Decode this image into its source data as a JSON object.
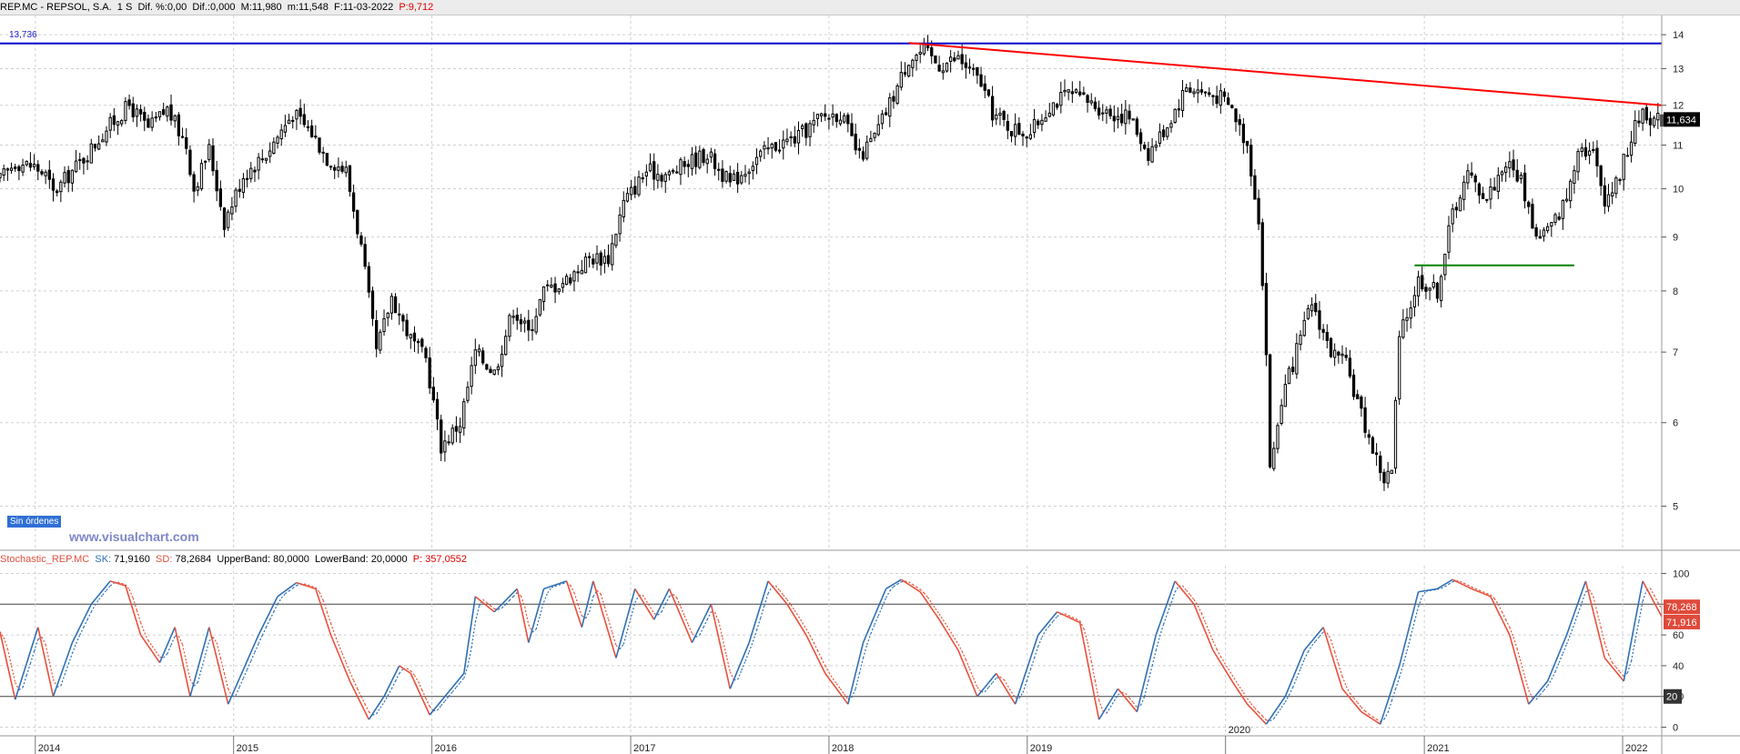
{
  "header": {
    "symbol": "REP.MC - REPSOL, S.A.",
    "period": "1 S",
    "dif_pct_label": "Dif. %:",
    "dif_pct": "0,00",
    "dif_label": "Dif.:",
    "dif": "0,000",
    "m_label": "M:",
    "m": "11,980",
    "min_label": "m:",
    "min": "11,548",
    "date_label": "F:",
    "date": "11-03-2022",
    "p_label": "P:",
    "p": "9,712"
  },
  "indicator_header": {
    "name": "Stochastic_REP.MC",
    "sk_label": "SK:",
    "sk": "71,9160",
    "sd_label": "SD:",
    "sd": "78,2684",
    "upper_label": "UpperBand:",
    "upper": "80,0000",
    "lower_label": "LowerBand:",
    "lower": "20,0000",
    "p_label": "P:",
    "p": "357,0552"
  },
  "badge": "Sin órdenes",
  "watermark": "www.visualchart.com",
  "colors": {
    "up_candle": "#ffffff",
    "down_candle": "#000000",
    "resistance": "#0000cc",
    "trendline": "#ff0000",
    "support": "#008000",
    "sk_up": "#2e6fb5",
    "sk_down": "#e8503a",
    "price_tag_bg": "#000000",
    "sk_tag_bg": "#e04a3a",
    "band_tag_bg": "#333333"
  },
  "chart_data": [
    {
      "type": "candlestick",
      "title": "REP.MC - REPSOL, S.A.",
      "timeframe": "weekly",
      "y_scale": "log",
      "ylim": [
        4.55,
        14.6
      ],
      "xlim": [
        "2013-10-28",
        "2022-03-14"
      ],
      "y_ticks": [
        5,
        6,
        7,
        8,
        9,
        10,
        11,
        12,
        13,
        14
      ],
      "x_ticks": [
        "2014",
        "2015",
        "2016",
        "2017",
        "2018",
        "2019",
        "2020",
        "2021",
        "2022"
      ],
      "last_price_label": "11,634",
      "last_price": 11.634,
      "grid": true,
      "anchors": [
        [
          "2013-10-28",
          10.2
        ],
        [
          "2013-11-25",
          10.6
        ],
        [
          "2013-12-30",
          10.5
        ],
        [
          "2014-01-20",
          10.3
        ],
        [
          "2014-02-03",
          9.9
        ],
        [
          "2014-03-03",
          10.3
        ],
        [
          "2014-04-07",
          10.8
        ],
        [
          "2014-05-12",
          11.4
        ],
        [
          "2014-06-23",
          12.0
        ],
        [
          "2014-07-28",
          11.4
        ],
        [
          "2014-09-01",
          11.9
        ],
        [
          "2014-10-06",
          11.0
        ],
        [
          "2014-10-20",
          10.0
        ],
        [
          "2014-11-17",
          10.9
        ],
        [
          "2014-12-15",
          9.3
        ],
        [
          "2015-01-19",
          10.3
        ],
        [
          "2015-03-02",
          10.8
        ],
        [
          "2015-04-20",
          11.8
        ],
        [
          "2015-05-25",
          11.3
        ],
        [
          "2015-06-22",
          10.7
        ],
        [
          "2015-07-27",
          10.4
        ],
        [
          "2015-08-24",
          8.8
        ],
        [
          "2015-09-21",
          7.0
        ],
        [
          "2015-10-19",
          7.9
        ],
        [
          "2015-11-23",
          7.2
        ],
        [
          "2015-12-21",
          6.9
        ],
        [
          "2016-01-18",
          5.7
        ],
        [
          "2016-02-22",
          6.0
        ],
        [
          "2016-03-21",
          7.0
        ],
        [
          "2016-04-25",
          6.7
        ],
        [
          "2016-05-30",
          7.7
        ],
        [
          "2016-06-27",
          7.3
        ],
        [
          "2016-07-25",
          8.0
        ],
        [
          "2016-09-05",
          8.2
        ],
        [
          "2016-10-17",
          8.6
        ],
        [
          "2016-11-21",
          8.6
        ],
        [
          "2016-12-19",
          9.7
        ],
        [
          "2017-01-30",
          10.4
        ],
        [
          "2017-03-13",
          10.3
        ],
        [
          "2017-04-17",
          10.6
        ],
        [
          "2017-05-22",
          10.8
        ],
        [
          "2017-07-03",
          10.1
        ],
        [
          "2017-08-21",
          10.7
        ],
        [
          "2017-09-25",
          11.0
        ],
        [
          "2017-11-06",
          11.2
        ],
        [
          "2017-12-18",
          11.7
        ],
        [
          "2018-01-22",
          11.8
        ],
        [
          "2018-02-26",
          10.7
        ],
        [
          "2018-03-26",
          11.2
        ],
        [
          "2018-05-07",
          12.5
        ],
        [
          "2018-05-28",
          13.3
        ],
        [
          "2018-06-25",
          13.5
        ],
        [
          "2018-07-23",
          13.1
        ],
        [
          "2018-08-27",
          13.3
        ],
        [
          "2018-10-08",
          12.6
        ],
        [
          "2018-10-29",
          11.8
        ],
        [
          "2018-12-03",
          11.4
        ],
        [
          "2019-01-07",
          11.3
        ],
        [
          "2019-02-11",
          12.0
        ],
        [
          "2019-03-18",
          12.3
        ],
        [
          "2019-04-22",
          12.1
        ],
        [
          "2019-06-03",
          11.8
        ],
        [
          "2019-07-08",
          11.7
        ],
        [
          "2019-08-12",
          10.8
        ],
        [
          "2019-09-16",
          11.5
        ],
        [
          "2019-10-21",
          12.5
        ],
        [
          "2019-11-11",
          12.4
        ],
        [
          "2019-12-23",
          12.2
        ],
        [
          "2020-01-13",
          11.9
        ],
        [
          "2020-02-10",
          11.0
        ],
        [
          "2020-03-02",
          9.4
        ],
        [
          "2020-03-16",
          7.0
        ],
        [
          "2020-03-23",
          5.4
        ],
        [
          "2020-04-13",
          6.3
        ],
        [
          "2020-05-18",
          7.2
        ],
        [
          "2020-06-08",
          7.8
        ],
        [
          "2020-07-13",
          7.0
        ],
        [
          "2020-08-10",
          6.8
        ],
        [
          "2020-09-21",
          5.8
        ],
        [
          "2020-10-19",
          5.3
        ],
        [
          "2020-11-02",
          5.4
        ],
        [
          "2020-11-16",
          7.2
        ],
        [
          "2020-12-21",
          8.2
        ],
        [
          "2021-01-25",
          8.0
        ],
        [
          "2021-02-22",
          9.5
        ],
        [
          "2021-03-22",
          10.3
        ],
        [
          "2021-04-26",
          9.8
        ],
        [
          "2021-05-31",
          10.6
        ],
        [
          "2021-06-28",
          10.2
        ],
        [
          "2021-07-26",
          9.0
        ],
        [
          "2021-08-23",
          9.2
        ],
        [
          "2021-09-20",
          9.8
        ],
        [
          "2021-10-11",
          11.0
        ],
        [
          "2021-11-08",
          10.8
        ],
        [
          "2021-11-29",
          9.8
        ],
        [
          "2021-12-20",
          10.1
        ],
        [
          "2022-01-17",
          11.2
        ],
        [
          "2022-02-07",
          11.9
        ],
        [
          "2022-02-28",
          11.6
        ],
        [
          "2022-03-14",
          11.634
        ]
      ],
      "lines": [
        {
          "name": "resistance",
          "label": "13,736",
          "kind": "horizontal",
          "value": 13.736
        },
        {
          "name": "trendline",
          "kind": "segment",
          "from": [
            "2018-05-28",
            13.75
          ],
          "to": [
            "2022-03-14",
            12.0
          ]
        },
        {
          "name": "support",
          "kind": "segment",
          "from": [
            "2020-12-14",
            8.46
          ],
          "to": [
            "2021-10-04",
            8.46
          ]
        }
      ]
    },
    {
      "type": "line",
      "title": "Stochastic_REP.MC",
      "ylim": [
        -5,
        105
      ],
      "y_ticks": [
        0,
        20,
        40,
        60,
        80,
        100
      ],
      "bands": [
        20,
        80
      ],
      "band_tags": [
        "20"
      ],
      "sk_label": "71,916",
      "sd_label": "78,268",
      "series": [
        {
          "name": "SK",
          "style": "solid"
        },
        {
          "name": "SD",
          "style": "dotted"
        }
      ],
      "sk_anchors": [
        [
          "2013-10-28",
          62
        ],
        [
          "2013-11-25",
          18
        ],
        [
          "2014-01-06",
          65
        ],
        [
          "2014-02-03",
          20
        ],
        [
          "2014-03-10",
          55
        ],
        [
          "2014-04-14",
          80
        ],
        [
          "2014-05-19",
          95
        ],
        [
          "2014-06-16",
          92
        ],
        [
          "2014-07-14",
          60
        ],
        [
          "2014-08-18",
          42
        ],
        [
          "2014-09-15",
          65
        ],
        [
          "2014-10-13",
          20
        ],
        [
          "2014-11-17",
          65
        ],
        [
          "2014-12-22",
          15
        ],
        [
          "2015-02-16",
          60
        ],
        [
          "2015-03-23",
          85
        ],
        [
          "2015-04-27",
          94
        ],
        [
          "2015-06-01",
          90
        ],
        [
          "2015-06-29",
          60
        ],
        [
          "2015-08-03",
          30
        ],
        [
          "2015-09-07",
          5
        ],
        [
          "2015-10-05",
          20
        ],
        [
          "2015-11-02",
          40
        ],
        [
          "2015-11-23",
          35
        ],
        [
          "2015-12-28",
          8
        ],
        [
          "2016-02-29",
          35
        ],
        [
          "2016-03-21",
          85
        ],
        [
          "2016-04-25",
          75
        ],
        [
          "2016-06-06",
          90
        ],
        [
          "2016-06-27",
          55
        ],
        [
          "2016-07-25",
          90
        ],
        [
          "2016-09-05",
          95
        ],
        [
          "2016-10-03",
          65
        ],
        [
          "2016-10-24",
          95
        ],
        [
          "2016-12-05",
          45
        ],
        [
          "2017-01-09",
          90
        ],
        [
          "2017-02-13",
          70
        ],
        [
          "2017-03-13",
          90
        ],
        [
          "2017-04-24",
          55
        ],
        [
          "2017-05-29",
          80
        ],
        [
          "2017-07-03",
          25
        ],
        [
          "2017-08-07",
          55
        ],
        [
          "2017-09-11",
          95
        ],
        [
          "2017-10-16",
          80
        ],
        [
          "2017-11-20",
          60
        ],
        [
          "2017-12-25",
          35
        ],
        [
          "2018-02-05",
          15
        ],
        [
          "2018-03-05",
          55
        ],
        [
          "2018-04-16",
          90
        ],
        [
          "2018-05-14",
          96
        ],
        [
          "2018-06-18",
          88
        ],
        [
          "2018-07-23",
          70
        ],
        [
          "2018-08-27",
          50
        ],
        [
          "2018-10-01",
          20
        ],
        [
          "2018-11-05",
          35
        ],
        [
          "2018-12-10",
          15
        ],
        [
          "2019-01-21",
          60
        ],
        [
          "2019-02-25",
          75
        ],
        [
          "2019-04-08",
          68
        ],
        [
          "2019-05-13",
          5
        ],
        [
          "2019-06-17",
          25
        ],
        [
          "2019-07-22",
          10
        ],
        [
          "2019-08-26",
          60
        ],
        [
          "2019-09-30",
          95
        ],
        [
          "2019-11-04",
          80
        ],
        [
          "2019-12-09",
          50
        ],
        [
          "2020-01-13",
          30
        ],
        [
          "2020-02-10",
          15
        ],
        [
          "2020-03-16",
          2
        ],
        [
          "2020-04-20",
          20
        ],
        [
          "2020-05-25",
          50
        ],
        [
          "2020-06-29",
          65
        ],
        [
          "2020-08-03",
          25
        ],
        [
          "2020-09-07",
          10
        ],
        [
          "2020-10-12",
          2
        ],
        [
          "2020-11-16",
          40
        ],
        [
          "2020-12-21",
          88
        ],
        [
          "2021-01-25",
          90
        ],
        [
          "2021-02-22",
          96
        ],
        [
          "2021-03-29",
          90
        ],
        [
          "2021-05-03",
          85
        ],
        [
          "2021-06-07",
          60
        ],
        [
          "2021-07-12",
          15
        ],
        [
          "2021-08-16",
          30
        ],
        [
          "2021-09-20",
          60
        ],
        [
          "2021-10-25",
          95
        ],
        [
          "2021-11-29",
          45
        ],
        [
          "2022-01-03",
          30
        ],
        [
          "2022-02-07",
          95
        ],
        [
          "2022-03-14",
          71.916
        ]
      ]
    }
  ]
}
